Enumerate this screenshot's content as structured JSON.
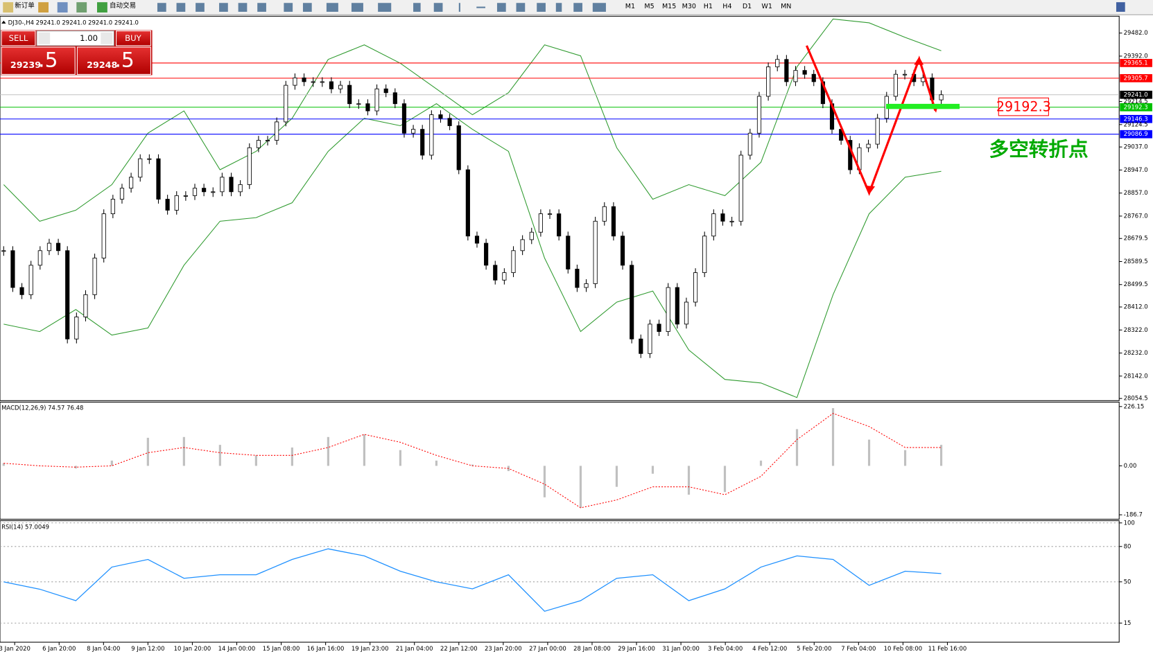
{
  "toolbar": {
    "new_order": "新订单",
    "auto_trading": "自动交易",
    "timeframes": [
      "M1",
      "M5",
      "M15",
      "M30",
      "H1",
      "H4",
      "D1",
      "W1",
      "MN"
    ]
  },
  "trade_panel": {
    "sell": "SELL",
    "buy": "BUY",
    "lots": "1.00",
    "sell_price": "29239",
    "sell_fraction": ".5",
    "buy_price": "29248",
    "buy_fraction": ".5"
  },
  "chart_data": [
    {
      "type": "candlestick",
      "title": "DJ30-,H4  29241.0 29241.0 29241.0 29241.0",
      "closes": [
        28632,
        28488,
        28460,
        28575,
        28632,
        28661,
        28632,
        28287,
        28373,
        28460,
        28603,
        28776,
        28833,
        28876,
        28919,
        28991,
        28991,
        28833,
        28790,
        28847,
        28847,
        28876,
        28862,
        28862,
        28919,
        28862,
        28890,
        29034,
        29063,
        29063,
        29135,
        29278,
        29307,
        29292,
        29292,
        29292,
        29264,
        29278,
        29206,
        29206,
        29178,
        29264,
        29249,
        29206,
        29091,
        29106,
        29005,
        29163,
        29149,
        29120,
        28948,
        28689,
        28661,
        28575,
        28517,
        28546,
        28632,
        28675,
        28704,
        28776,
        28776,
        28689,
        28560,
        28488,
        28503,
        28747,
        28804,
        28689,
        28575,
        28287,
        28230,
        28345,
        28316,
        28488,
        28345,
        28431,
        28546,
        28689,
        28776,
        28747,
        28747,
        29005,
        29091,
        29235,
        29350,
        29379,
        29292,
        29336,
        29321,
        29292,
        29206,
        29106,
        29063,
        28948,
        29034,
        29048,
        29149,
        29235,
        29321,
        29321,
        29292,
        29307,
        29221,
        29241
      ],
      "upper_band": [
        28890,
        28747,
        28790,
        28890,
        29091,
        29178,
        28948,
        29020,
        29149,
        29379,
        29436,
        29364,
        29264,
        29163,
        29249,
        29436,
        29393,
        29034,
        28833,
        28890,
        28847,
        28977,
        29350,
        29537,
        29522,
        29465,
        29413
      ],
      "lower_band": [
        28345,
        28316,
        28402,
        28302,
        28330,
        28575,
        28747,
        28761,
        28819,
        29020,
        29149,
        29120,
        29206,
        29106,
        29020,
        28603,
        28316,
        28431,
        28474,
        28244,
        28129,
        28115,
        28058,
        28460,
        28776,
        28919,
        28942
      ],
      "ylim": [
        28046,
        29545
      ],
      "yticks": [
        {
          "value": 29482,
          "label": "29482.0"
        },
        {
          "value": 29392,
          "label": "29392.0"
        },
        {
          "value": 29214.5,
          "label": "29214.5"
        },
        {
          "value": 29124.5,
          "label": "29124.5"
        },
        {
          "value": 29037,
          "label": "29037.0"
        },
        {
          "value": 28947,
          "label": "28947.0"
        },
        {
          "value": 28857,
          "label": "28857.0"
        },
        {
          "value": 28767,
          "label": "28767.0"
        },
        28679.5,
        28589.5,
        28499.5,
        {
          "value": 28412,
          "label": "28412.0"
        },
        {
          "value": 28322,
          "label": "28322.0"
        },
        {
          "value": 28232,
          "label": "28232.0"
        },
        {
          "value": 28142,
          "label": "28142.0"
        },
        28054.5
      ],
      "hlines": [
        {
          "value": 29365.1,
          "color": "#ff0000"
        },
        {
          "value": 29305.7,
          "color": "#ff0000"
        },
        {
          "value": 29241,
          "label": "29241.0",
          "color": "#000000"
        },
        {
          "value": 29192.3,
          "color": "#00c000"
        },
        {
          "value": 29146.3,
          "color": "#0000ff"
        },
        {
          "value": 29086.9,
          "color": "#0000ff"
        }
      ],
      "annotation": "多空转折点",
      "time_labels": [
        "3 Jan 2020",
        "6 Jan 20:00",
        "8 Jan 04:00",
        "9 Jan 12:00",
        "10 Jan 20:00",
        "14 Jan 00:00",
        "15 Jan 08:00",
        "16 Jan 16:00",
        "19 Jan 23:00",
        "21 Jan 04:00",
        "22 Jan 12:00",
        "23 Jan 20:00",
        "27 Jan 00:00",
        "28 Jan 08:00",
        "29 Jan 16:00",
        "31 Jan 00:00",
        "3 Feb 04:00",
        "4 Feb 12:00",
        "5 Feb 20:00",
        "7 Feb 04:00",
        "10 Feb 08:00",
        "11 Feb 16:00"
      ]
    },
    {
      "type": "macd",
      "title": "MACD(12,26,9) 74.57 76.48",
      "histogram": [
        10,
        0,
        -10,
        20,
        107,
        110,
        80,
        40,
        70,
        110,
        120,
        60,
        20,
        5,
        -20,
        -120,
        -160,
        -80,
        -30,
        -110,
        -100,
        20,
        140,
        220,
        100,
        60,
        80
      ],
      "signal": [
        10,
        0,
        -5,
        0,
        50,
        70,
        50,
        40,
        40,
        70,
        120,
        90,
        40,
        0,
        -10,
        -70,
        -160,
        -130,
        -80,
        -80,
        -110,
        -40,
        100,
        200,
        150,
        70,
        70
      ],
      "ylim": [
        -186.7,
        226.15
      ],
      "yticks": [
        226.15,
        {
          "value": 0,
          "label": "0.00"
        },
        -186.7
      ]
    },
    {
      "type": "rsi",
      "title": "RSI(14) 57.0049",
      "values": [
        50,
        43.75,
        34,
        62.5,
        69,
        53,
        56,
        56,
        69,
        78,
        72,
        59,
        50,
        44,
        56,
        25,
        34,
        53,
        56,
        34,
        44,
        62.5,
        72,
        69,
        47,
        59,
        57
      ],
      "ylim": [
        0,
        100
      ],
      "yticks": [
        15,
        50,
        80,
        100
      ],
      "grid": true
    }
  ]
}
